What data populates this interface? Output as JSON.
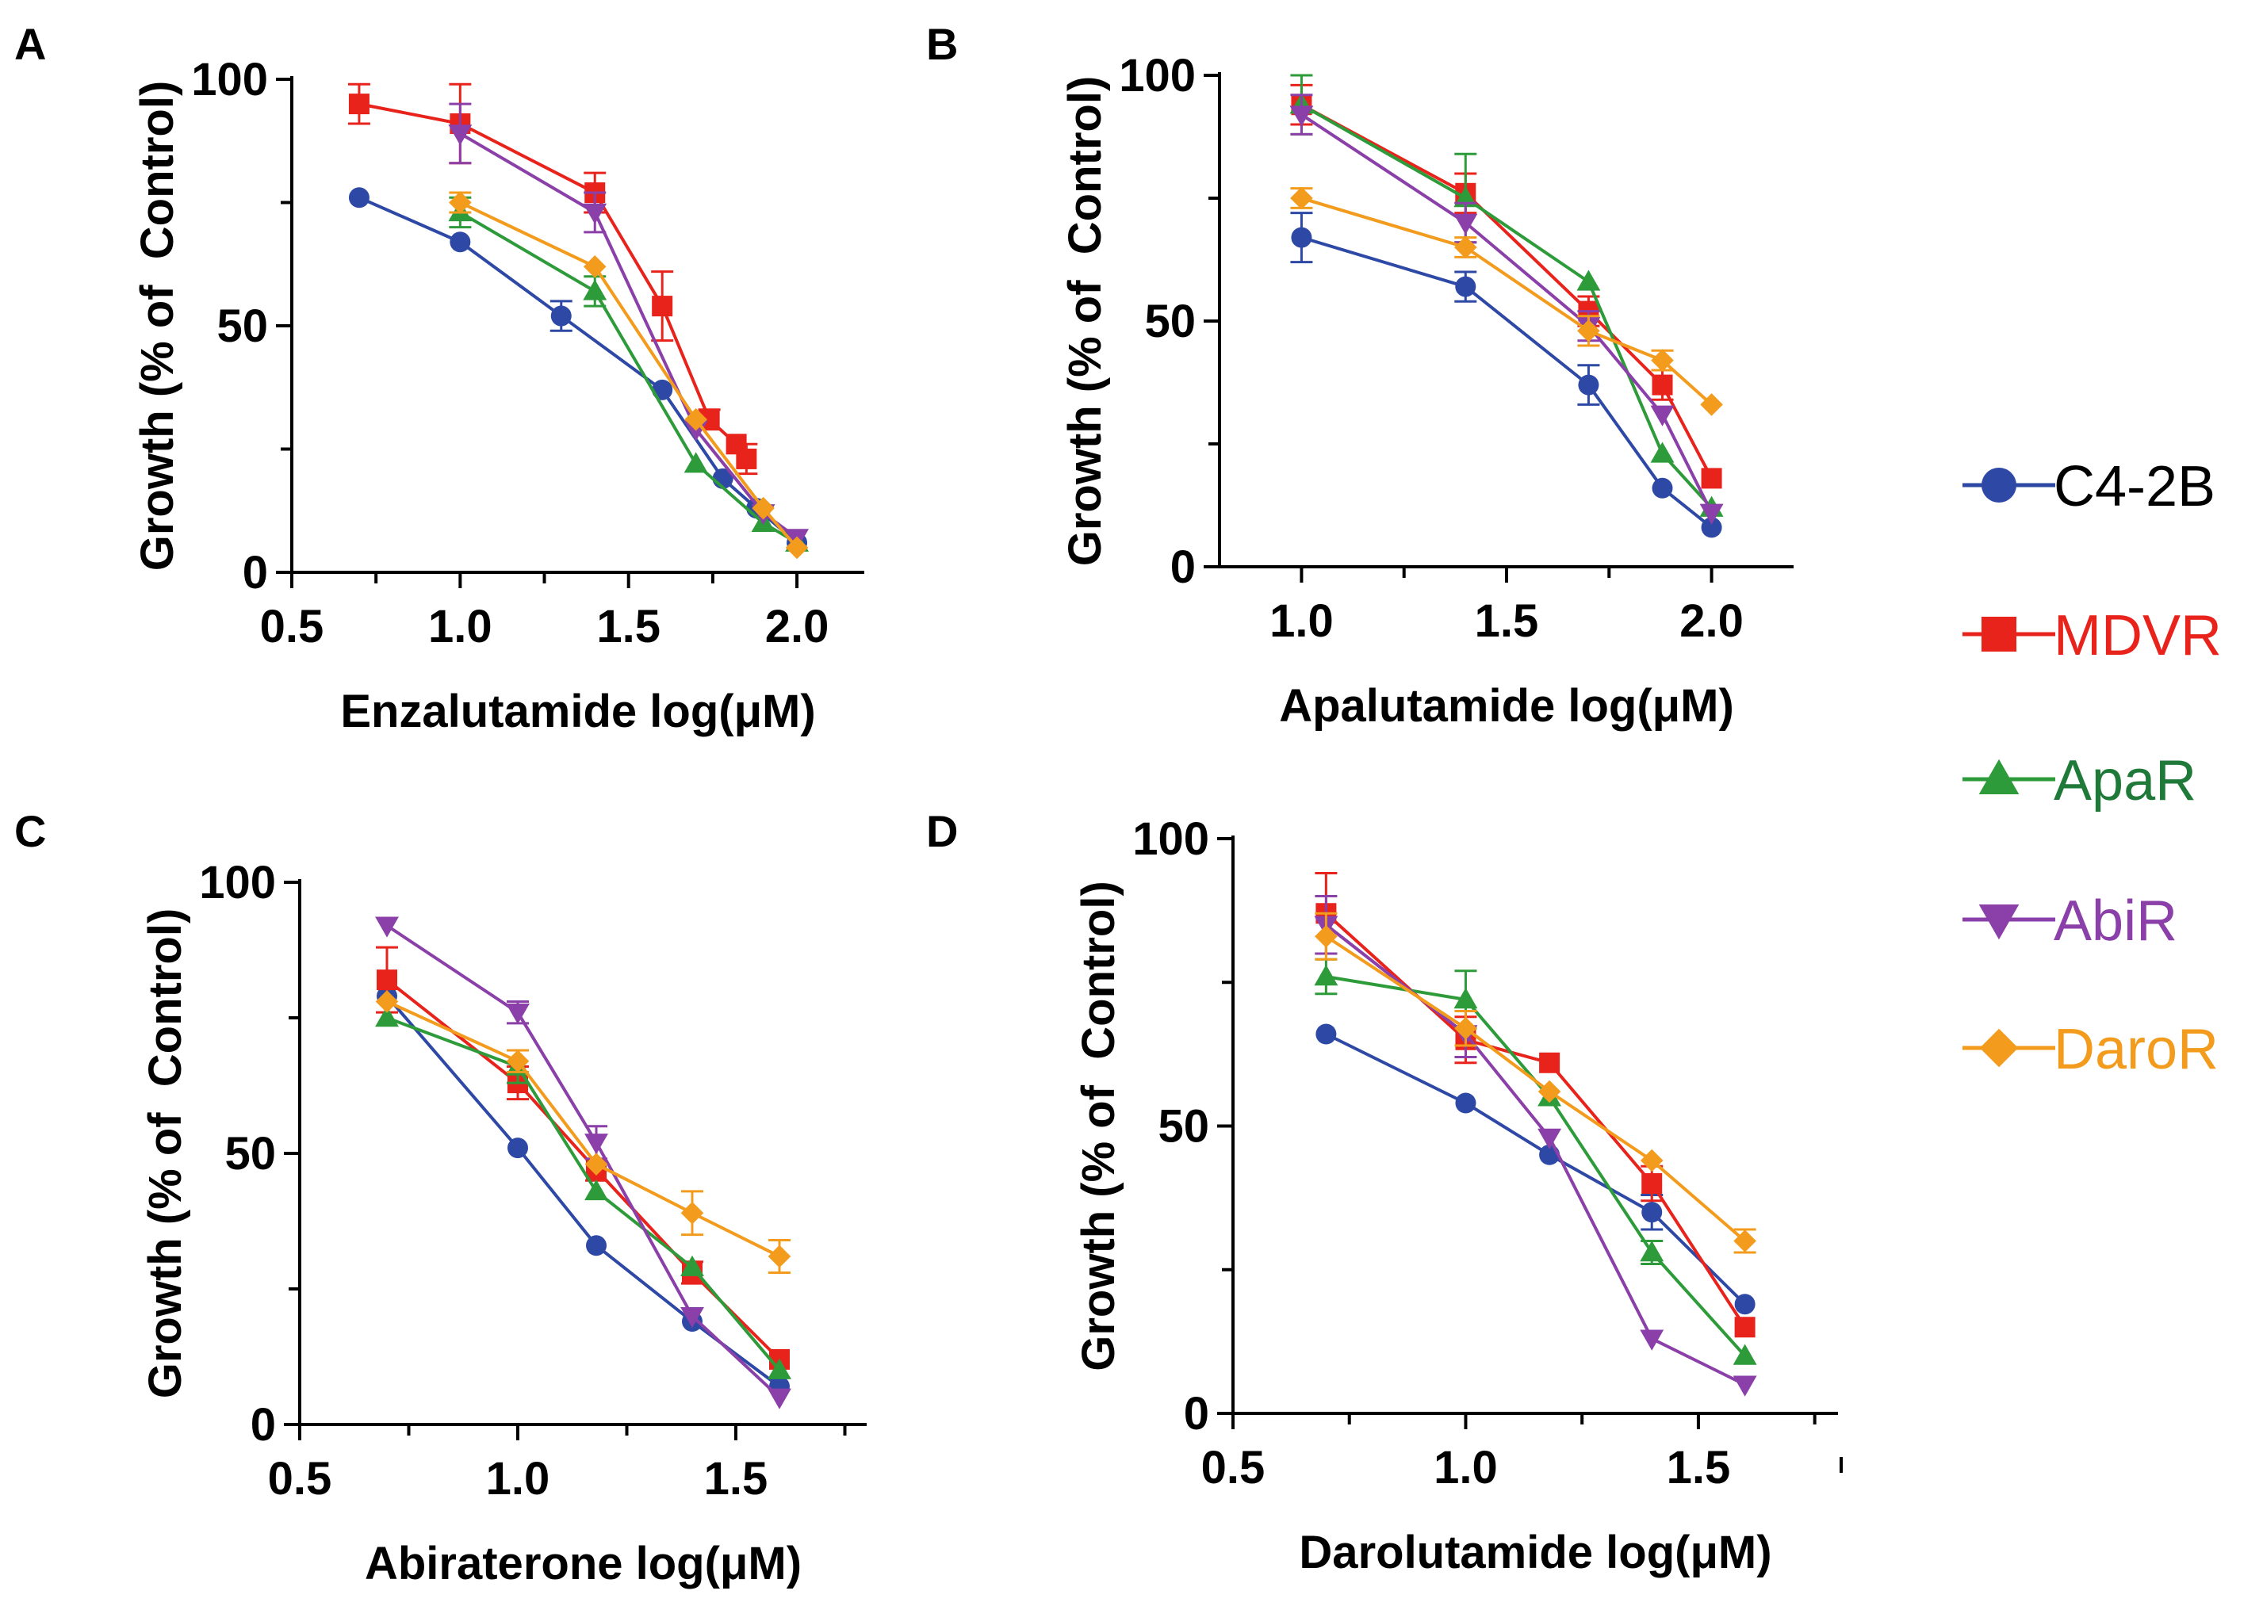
{
  "series_colors": {
    "C4-2B": "#2e48a6",
    "MDVR": "#e8231c",
    "ApaR": "#2e9b3a",
    "AbiR": "#8b3fa8",
    "DaroR": "#f39b1c"
  },
  "legend": [
    {
      "name": "C4-2B",
      "marker": "circle",
      "color": "#2e48a6",
      "text_color": "#000000"
    },
    {
      "name": "MDVR",
      "marker": "square",
      "color": "#e8231c",
      "text_color": "#e8231c"
    },
    {
      "name": "ApaR",
      "marker": "triangle-up",
      "color": "#2e9b3a",
      "text_color": "#1f7a3a"
    },
    {
      "name": "AbiR",
      "marker": "triangle-down",
      "color": "#8b3fa8",
      "text_color": "#8b3fa8"
    },
    {
      "name": "DaroR",
      "marker": "diamond",
      "color": "#f39b1c",
      "text_color": "#f39b1c"
    }
  ],
  "chart_data": [
    {
      "panel": "A",
      "type": "line",
      "xlabel": "Enzalutamide log(μM)",
      "ylabel": "Growth (% of  Control)",
      "xlim": [
        0.5,
        2.2
      ],
      "ylim": [
        0,
        100
      ],
      "xticks": [
        0.5,
        1.0,
        1.5,
        2.0
      ],
      "xtick_labels": [
        "0.5",
        "1.0",
        "1.5",
        "2.0"
      ],
      "yticks": [
        0,
        50,
        100
      ],
      "ytick_labels": [
        "0",
        "50",
        "100"
      ],
      "series": [
        {
          "name": "C4-2B",
          "x": [
            0.7,
            1.0,
            1.3,
            1.6,
            1.78,
            1.88,
            2.0
          ],
          "y": [
            76,
            67,
            52,
            37,
            19,
            13,
            6
          ],
          "err": [
            0,
            0,
            3,
            0,
            0,
            0,
            0
          ]
        },
        {
          "name": "MDVR",
          "x": [
            0.7,
            1.0,
            1.4,
            1.6,
            1.74,
            1.82,
            1.85
          ],
          "y": [
            95,
            91,
            77,
            54,
            31,
            26,
            23
          ],
          "err": [
            4,
            8,
            4,
            7,
            2,
            0,
            3
          ]
        },
        {
          "name": "ApaR",
          "x": [
            1.0,
            1.4,
            1.7,
            1.9,
            2.0
          ],
          "y": [
            73,
            57,
            22,
            10,
            6
          ],
          "err": [
            3,
            3,
            0,
            0,
            0
          ]
        },
        {
          "name": "AbiR",
          "x": [
            1.0,
            1.4,
            1.7,
            1.9,
            2.0
          ],
          "y": [
            89,
            73,
            29,
            12,
            7
          ],
          "err": [
            6,
            4,
            0,
            0,
            0
          ]
        },
        {
          "name": "DaroR",
          "x": [
            1.0,
            1.4,
            1.7,
            1.9,
            2.0
          ],
          "y": [
            75,
            62,
            31,
            13,
            5
          ],
          "err": [
            2,
            0,
            0,
            0,
            0
          ]
        }
      ]
    },
    {
      "panel": "B",
      "type": "line",
      "xlabel": "Apalutamide log(μM)",
      "ylabel": "Growth (% of  Control)",
      "xlim": [
        0.8,
        2.2
      ],
      "ylim": [
        0,
        100
      ],
      "xticks": [
        1.0,
        1.5,
        2.0
      ],
      "xtick_labels": [
        "1.0",
        "1.5",
        "2.0"
      ],
      "yticks": [
        0,
        50,
        100
      ],
      "ytick_labels": [
        "0",
        "50",
        "100"
      ],
      "series": [
        {
          "name": "C4-2B",
          "x": [
            1.0,
            1.4,
            1.7,
            1.88,
            2.0
          ],
          "y": [
            67,
            57,
            37,
            16,
            8
          ],
          "err": [
            5,
            3,
            4,
            0,
            0
          ]
        },
        {
          "name": "MDVR",
          "x": [
            1.0,
            1.4,
            1.7,
            1.88,
            2.0
          ],
          "y": [
            94,
            76,
            52,
            37,
            18
          ],
          "err": [
            4,
            4,
            3,
            3,
            0
          ]
        },
        {
          "name": "ApaR",
          "x": [
            1.0,
            1.4,
            1.7,
            1.88,
            2.0
          ],
          "y": [
            94,
            75,
            58,
            23,
            12
          ],
          "err": [
            6,
            9,
            0,
            0,
            0
          ]
        },
        {
          "name": "AbiR",
          "x": [
            1.0,
            1.4,
            1.7,
            1.88,
            2.0
          ],
          "y": [
            92,
            70,
            49,
            31,
            11
          ],
          "err": [
            4,
            4,
            3,
            0,
            0
          ]
        },
        {
          "name": "DaroR",
          "x": [
            1.0,
            1.4,
            1.7,
            1.88,
            2.0
          ],
          "y": [
            75,
            65,
            48,
            42,
            33
          ],
          "err": [
            2,
            2,
            3,
            2,
            0
          ]
        }
      ]
    },
    {
      "panel": "C",
      "type": "line",
      "xlabel": "Abiraterone log(μM)",
      "ylabel": "Growth (% of  Control)",
      "xlim": [
        0.5,
        1.8
      ],
      "ylim": [
        0,
        100
      ],
      "xticks": [
        0.5,
        1.0,
        1.5
      ],
      "xtick_labels": [
        "0.5",
        "1.0",
        "1.5"
      ],
      "yticks": [
        0,
        50,
        100
      ],
      "ytick_labels": [
        "0",
        "50",
        "100"
      ],
      "series": [
        {
          "name": "C4-2B",
          "x": [
            0.7,
            1.0,
            1.18,
            1.4,
            1.6
          ],
          "y": [
            79,
            51,
            33,
            19,
            7
          ],
          "err": [
            0,
            0,
            0,
            0,
            0
          ]
        },
        {
          "name": "MDVR",
          "x": [
            0.7,
            1.0,
            1.18,
            1.4,
            1.6
          ],
          "y": [
            82,
            63,
            47,
            28,
            12
          ],
          "err": [
            6,
            3,
            2,
            2,
            0
          ]
        },
        {
          "name": "ApaR",
          "x": [
            0.7,
            1.0,
            1.18,
            1.4,
            1.6
          ],
          "y": [
            75,
            66,
            43,
            29,
            10
          ],
          "err": [
            0,
            3,
            0,
            0,
            0
          ]
        },
        {
          "name": "AbiR",
          "x": [
            0.7,
            1.0,
            1.18,
            1.4,
            1.6
          ],
          "y": [
            92,
            76,
            52,
            20,
            5
          ],
          "err": [
            0,
            2,
            3,
            0,
            0
          ]
        },
        {
          "name": "DaroR",
          "x": [
            0.7,
            1.0,
            1.18,
            1.4,
            1.6
          ],
          "y": [
            78,
            67,
            48,
            39,
            31
          ],
          "err": [
            0,
            2,
            0,
            4,
            3
          ]
        }
      ]
    },
    {
      "panel": "D",
      "type": "line",
      "xlabel": "Darolutamide log(μM)",
      "ylabel": "Growth (% of  Control)",
      "xlim": [
        0.5,
        1.8
      ],
      "ylim": [
        0,
        100
      ],
      "xticks": [
        0.5,
        1.0,
        1.5
      ],
      "xtick_labels": [
        "0.5",
        "1.0",
        "1.5"
      ],
      "yticks": [
        0,
        50,
        100
      ],
      "ytick_labels": [
        "0",
        "50",
        "100"
      ],
      "series": [
        {
          "name": "C4-2B",
          "x": [
            0.7,
            1.0,
            1.18,
            1.4,
            1.6
          ],
          "y": [
            66,
            54,
            45,
            35,
            19
          ],
          "err": [
            0,
            0,
            0,
            3,
            0
          ]
        },
        {
          "name": "MDVR",
          "x": [
            0.7,
            1.0,
            1.18,
            1.4,
            1.6
          ],
          "y": [
            87,
            65,
            61,
            40,
            15
          ],
          "err": [
            7,
            4,
            0,
            3,
            0
          ]
        },
        {
          "name": "ApaR",
          "x": [
            0.7,
            1.0,
            1.18,
            1.4,
            1.6
          ],
          "y": [
            76,
            72,
            55,
            28,
            10
          ],
          "err": [
            3,
            5,
            0,
            2,
            0
          ]
        },
        {
          "name": "AbiR",
          "x": [
            0.7,
            1.0,
            1.18,
            1.4,
            1.6
          ],
          "y": [
            85,
            66,
            48,
            13,
            5
          ],
          "err": [
            5,
            4,
            0,
            0,
            0
          ]
        },
        {
          "name": "DaroR",
          "x": [
            0.7,
            1.0,
            1.18,
            1.4,
            1.6
          ],
          "y": [
            83,
            67,
            56,
            44,
            30
          ],
          "err": [
            4,
            3,
            0,
            0,
            2
          ]
        }
      ]
    }
  ]
}
